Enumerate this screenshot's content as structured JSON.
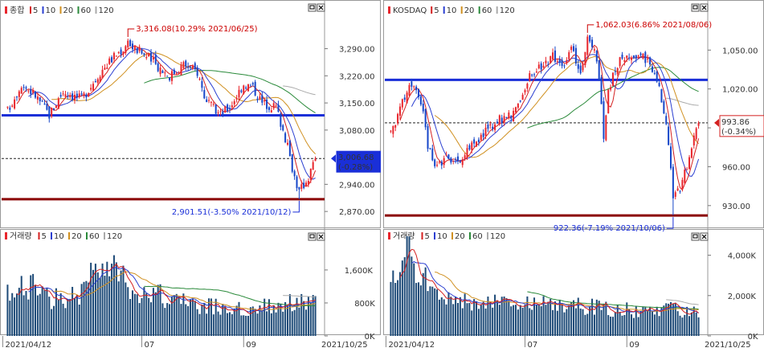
{
  "charts": [
    {
      "id": "kospi",
      "legend_price": {
        "name": "종합",
        "ma": [
          "5",
          "10",
          "20",
          "60",
          "120"
        ]
      },
      "legend_volume": {
        "name": "거래량",
        "ma": [
          "5",
          "10",
          "20",
          "60",
          "120"
        ]
      },
      "colors": {
        "up": "#e8262d",
        "down": "#1747c9",
        "ma5": "#d42020",
        "ma10": "#2b3fd1",
        "ma20": "#d09020",
        "ma60": "#2a8a3a",
        "ma120": "#aaaaaa",
        "hline": "#1a2fd8",
        "lowline": "#8b0000",
        "volume": "#1e4b78"
      },
      "price_axis": {
        "min": 2835,
        "max": 3370,
        "ticks": [
          "3,290.00",
          "3,220.00",
          "3,150.00",
          "3,080.00",
          "2,940.00",
          "2,870.00"
        ],
        "tick_values": [
          3290,
          3220,
          3150,
          3080,
          2940,
          2870
        ]
      },
      "volume_axis": {
        "max": 2300000,
        "ticks": [
          "1,600K",
          "800K",
          "0K"
        ],
        "tick_values": [
          1600000,
          800000,
          0
        ]
      },
      "x_labels": [
        "2021/04/12",
        "07",
        "09"
      ],
      "x_label_index": [
        0,
        58,
        102
      ],
      "end_date": "2021/10/25",
      "current_price": "3,006.68",
      "current_change": "(-0.28%)",
      "h_line": 3118,
      "low_line": 2901.5,
      "dashed_level": 3006.68,
      "high_annotation": "3,316.08(10.29% 2021/06/25)",
      "low_annotation": "2,901.51(-3.50% 2021/10/12)",
      "high_value": 3316.08,
      "low_value": 2901.51,
      "high_index": 52,
      "low_index": 126,
      "n": 134,
      "anchors": [
        [
          0,
          3130
        ],
        [
          6,
          3200
        ],
        [
          12,
          3170
        ],
        [
          18,
          3120
        ],
        [
          24,
          3180
        ],
        [
          32,
          3160
        ],
        [
          40,
          3230
        ],
        [
          46,
          3270
        ],
        [
          52,
          3300
        ],
        [
          58,
          3280
        ],
        [
          64,
          3250
        ],
        [
          70,
          3220
        ],
        [
          76,
          3250
        ],
        [
          82,
          3230
        ],
        [
          86,
          3150
        ],
        [
          92,
          3120
        ],
        [
          96,
          3140
        ],
        [
          102,
          3200
        ],
        [
          106,
          3190
        ],
        [
          110,
          3150
        ],
        [
          116,
          3140
        ],
        [
          120,
          3060
        ],
        [
          124,
          2960
        ],
        [
          126,
          2920
        ],
        [
          130,
          2960
        ],
        [
          133,
          3006
        ]
      ],
      "vol_anchors": [
        [
          0,
          1000000
        ],
        [
          10,
          1200000
        ],
        [
          20,
          900000
        ],
        [
          30,
          1000000
        ],
        [
          38,
          1500000
        ],
        [
          46,
          1700000
        ],
        [
          52,
          1200000
        ],
        [
          60,
          1100000
        ],
        [
          70,
          900000
        ],
        [
          80,
          750000
        ],
        [
          90,
          700000
        ],
        [
          100,
          650000
        ],
        [
          110,
          700000
        ],
        [
          120,
          800000
        ],
        [
          133,
          850000
        ]
      ]
    },
    {
      "id": "kosdaq",
      "legend_price": {
        "name": "KOSDAQ",
        "ma": [
          "5",
          "10",
          "20",
          "60",
          "120"
        ]
      },
      "legend_volume": {
        "name": "거래량",
        "ma": [
          "5",
          "10",
          "20",
          "60",
          "120"
        ]
      },
      "colors": {
        "up": "#e8262d",
        "down": "#1747c9",
        "ma5": "#d42020",
        "ma10": "#2b3fd1",
        "ma20": "#d09020",
        "ma60": "#2a8a3a",
        "ma120": "#aaaaaa",
        "hline": "#1a2fd8",
        "lowline": "#8b0000",
        "volume": "#1e4b78"
      },
      "price_axis": {
        "min": 915,
        "max": 1075,
        "ticks": [
          "1,050.00",
          "1,020.00",
          "990.00",
          "960.00",
          "930.00"
        ],
        "tick_values": [
          1050,
          1020,
          990,
          960,
          930
        ]
      },
      "volume_axis": {
        "max": 4700000,
        "ticks": [
          "4,000K",
          "2,000K",
          "0K"
        ],
        "tick_values": [
          4000000,
          2000000,
          0
        ]
      },
      "x_labels": [
        "2021/04/12",
        "07",
        "09"
      ],
      "x_label_index": [
        0,
        58,
        102
      ],
      "end_date": "2021/10/25",
      "current_price": "993.86",
      "current_change": "(-0.34%)",
      "h_line": 1027,
      "low_line": 922.36,
      "dashed_level": 993.86,
      "high_annotation": "1,062.03(6.86% 2021/08/06)",
      "low_annotation": "922.36(-7.19% 2021/10/06)",
      "high_value": 1062.03,
      "low_value": 922.36,
      "high_index": 85,
      "low_index": 122,
      "n": 134,
      "anchors": [
        [
          0,
          985
        ],
        [
          6,
          1015
        ],
        [
          10,
          1025
        ],
        [
          14,
          1000
        ],
        [
          16,
          975
        ],
        [
          20,
          960
        ],
        [
          24,
          970
        ],
        [
          30,
          960
        ],
        [
          34,
          975
        ],
        [
          40,
          985
        ],
        [
          46,
          995
        ],
        [
          52,
          1000
        ],
        [
          56,
          1010
        ],
        [
          60,
          1030
        ],
        [
          66,
          1040
        ],
        [
          70,
          1045
        ],
        [
          74,
          1035
        ],
        [
          78,
          1050
        ],
        [
          82,
          1035
        ],
        [
          85,
          1058
        ],
        [
          88,
          1050
        ],
        [
          90,
          1025
        ],
        [
          92,
          985
        ],
        [
          94,
          1020
        ],
        [
          98,
          1040
        ],
        [
          102,
          1048
        ],
        [
          108,
          1045
        ],
        [
          112,
          1040
        ],
        [
          116,
          1020
        ],
        [
          120,
          980
        ],
        [
          122,
          935
        ],
        [
          125,
          945
        ],
        [
          128,
          960
        ],
        [
          131,
          985
        ],
        [
          133,
          994
        ]
      ],
      "vol_anchors": [
        [
          0,
          2500000
        ],
        [
          4,
          3500000
        ],
        [
          8,
          4200000
        ],
        [
          12,
          3000000
        ],
        [
          20,
          2000000
        ],
        [
          30,
          1800000
        ],
        [
          40,
          1700000
        ],
        [
          50,
          1600000
        ],
        [
          60,
          1600000
        ],
        [
          70,
          1500000
        ],
        [
          80,
          1500000
        ],
        [
          90,
          1400000
        ],
        [
          100,
          1300000
        ],
        [
          110,
          1200000
        ],
        [
          120,
          1300000
        ],
        [
          133,
          1200000
        ]
      ]
    }
  ]
}
